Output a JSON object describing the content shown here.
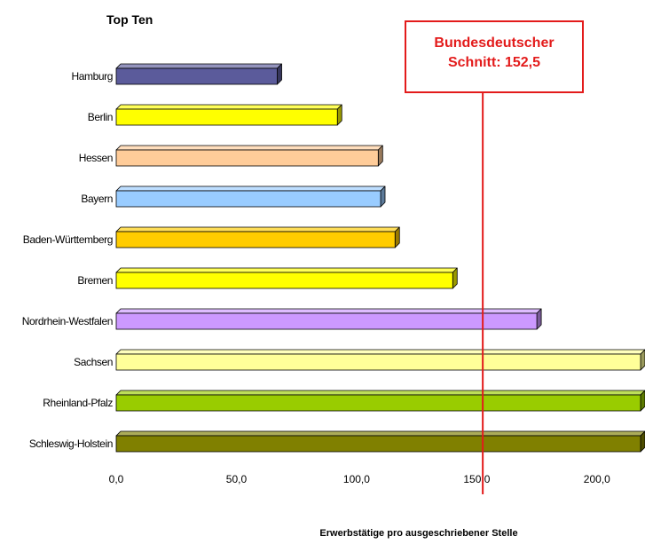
{
  "chart_data": {
    "type": "bar",
    "orientation": "horizontal",
    "title": "Top Ten",
    "xlabel": "Erwerbstätige pro ausgeschriebener Stelle",
    "ylabel": "",
    "xlim": [
      0,
      220
    ],
    "x_ticks": [
      "0,0",
      "50,0",
      "100,0",
      "150,0",
      "200,0"
    ],
    "x_tick_values": [
      0,
      50,
      100,
      150,
      200
    ],
    "categories": [
      "Hamburg",
      "Berlin",
      "Hessen",
      "Bayern",
      "Baden-Württemberg",
      "Bremen",
      "Nordrhein-Westfalen",
      "Sachsen",
      "Rheinland-Pfalz",
      "Schleswig-Holstein"
    ],
    "values": [
      67,
      92,
      109,
      110,
      116,
      140,
      175,
      220,
      220,
      220
    ],
    "bar_colors": [
      "#5b5b9b",
      "#ffff00",
      "#ffcc99",
      "#99ccff",
      "#ffcc00",
      "#ffff00",
      "#cc99ff",
      "#ffff99",
      "#99cc00",
      "#808000"
    ],
    "grid": false,
    "legend": "none",
    "reference_line": {
      "value": 152.5,
      "color": "#e31b1b",
      "label_line1": "Bundesdeutscher",
      "label_line2": "Schnitt: 152,5"
    }
  }
}
